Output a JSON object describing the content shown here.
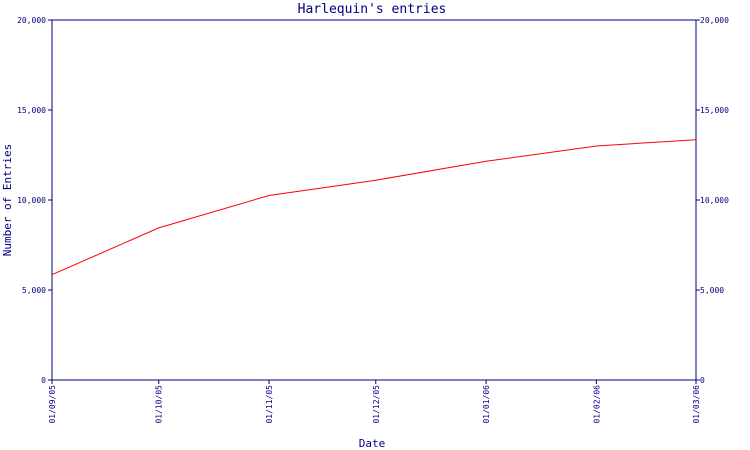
{
  "chart_data": {
    "type": "line",
    "title": "Harlequin's entries",
    "xlabel": "Date",
    "ylabel": "Number of Entries",
    "xlim": [
      "01/09/05",
      "01/03/06"
    ],
    "ylim": [
      0,
      20000
    ],
    "y_ticks": [
      {
        "value": 0,
        "label": "0"
      },
      {
        "value": 5000,
        "label": "5,000"
      },
      {
        "value": 10000,
        "label": "10,000"
      },
      {
        "value": 15000,
        "label": "15,000"
      },
      {
        "value": 20000,
        "label": "20,000"
      }
    ],
    "x_ticks": [
      {
        "value": "01/09/05",
        "label": "01/09/05"
      },
      {
        "value": "01/10/05",
        "label": "01/10/05"
      },
      {
        "value": "01/11/05",
        "label": "01/11/05"
      },
      {
        "value": "01/12/05",
        "label": "01/12/05"
      },
      {
        "value": "01/01/06",
        "label": "01/01/06"
      },
      {
        "value": "01/02/06",
        "label": "01/02/06"
      },
      {
        "value": "01/03/06",
        "label": "01/03/06"
      }
    ],
    "grid": false,
    "series": [
      {
        "color": "#ff0000",
        "points": [
          {
            "x": "01/09/05",
            "y": 5850
          },
          {
            "x": "01/10/05",
            "y": 8450
          },
          {
            "x": "01/11/05",
            "y": 10250
          },
          {
            "x": "01/12/05",
            "y": 11100
          },
          {
            "x": "01/01/06",
            "y": 12150
          },
          {
            "x": "01/02/06",
            "y": 13000
          },
          {
            "x": "01/03/06",
            "y": 13350
          }
        ]
      }
    ]
  }
}
